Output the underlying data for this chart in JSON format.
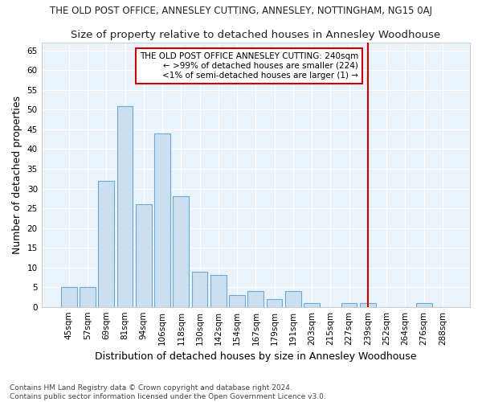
{
  "title": "THE OLD POST OFFICE, ANNESLEY CUTTING, ANNESLEY, NOTTINGHAM, NG15 0AJ",
  "subtitle": "Size of property relative to detached houses in Annesley Woodhouse",
  "xlabel": "Distribution of detached houses by size in Annesley Woodhouse",
  "ylabel": "Number of detached properties",
  "categories": [
    "45sqm",
    "57sqm",
    "69sqm",
    "81sqm",
    "94sqm",
    "106sqm",
    "118sqm",
    "130sqm",
    "142sqm",
    "154sqm",
    "167sqm",
    "179sqm",
    "191sqm",
    "203sqm",
    "215sqm",
    "227sqm",
    "239sqm",
    "252sqm",
    "264sqm",
    "276sqm",
    "288sqm"
  ],
  "values": [
    5,
    5,
    32,
    51,
    26,
    44,
    28,
    9,
    8,
    3,
    4,
    2,
    4,
    1,
    0,
    1,
    1,
    0,
    0,
    1,
    0
  ],
  "bar_color": "#ccdff0",
  "bar_edge_color": "#6aaad4",
  "red_line_index": 16,
  "ylim": [
    0,
    67
  ],
  "yticks": [
    0,
    5,
    10,
    15,
    20,
    25,
    30,
    35,
    40,
    45,
    50,
    55,
    60,
    65
  ],
  "fig_bg_color": "#ffffff",
  "plot_bg_color": "#eaf2fa",
  "grid_color": "#ffffff",
  "annotation_text": "THE OLD POST OFFICE ANNESLEY CUTTING: 240sqm\n← >99% of detached houses are smaller (224)\n<1% of semi-detached houses are larger (1) →",
  "annotation_box_facecolor": "#ffffff",
  "annotation_box_edgecolor": "#cc0000",
  "red_line_color": "#cc0000",
  "footer_text": "Contains HM Land Registry data © Crown copyright and database right 2024.\nContains public sector information licensed under the Open Government Licence v3.0.",
  "title_fontsize": 8.5,
  "subtitle_fontsize": 9.5,
  "axis_label_fontsize": 9,
  "tick_fontsize": 7.5,
  "annotation_fontsize": 7.5,
  "footer_fontsize": 6.5
}
